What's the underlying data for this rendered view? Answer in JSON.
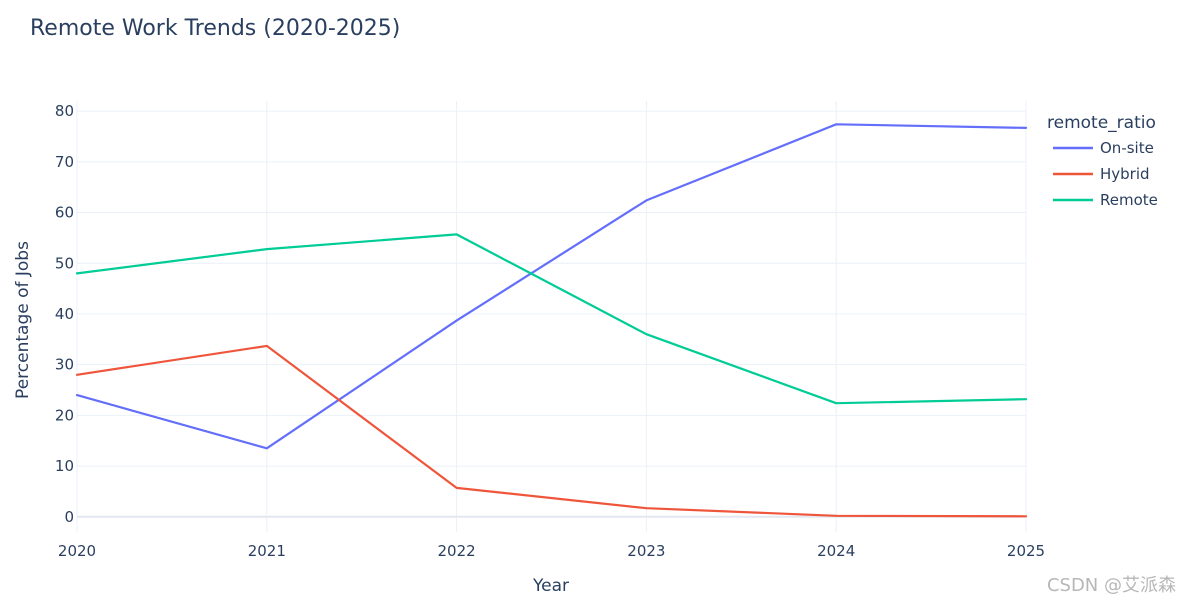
{
  "chart_data": {
    "type": "line",
    "title": "Remote Work Trends (2020-2025)",
    "xlabel": "Year",
    "ylabel": "Percentage of Jobs",
    "x": [
      2020,
      2021,
      2022,
      2023,
      2024,
      2025
    ],
    "xlim": [
      2020,
      2025
    ],
    "ylim": [
      -3,
      82
    ],
    "yticks": [
      0,
      10,
      20,
      30,
      40,
      50,
      60,
      70,
      80
    ],
    "xticks": [
      2020,
      2021,
      2022,
      2023,
      2024,
      2025
    ],
    "grid": true,
    "legend": {
      "title": "remote_ratio",
      "placement": "right"
    },
    "series": [
      {
        "name": "On-site",
        "color": "#636efa",
        "values": [
          24,
          13.5,
          38.7,
          62.4,
          77.4,
          76.7
        ]
      },
      {
        "name": "Hybrid",
        "color": "#ef553b",
        "values": [
          28,
          33.7,
          5.7,
          1.7,
          0.2,
          0.1
        ]
      },
      {
        "name": "Remote",
        "color": "#00cc96",
        "values": [
          48,
          52.8,
          55.7,
          36,
          22.4,
          23.2
        ]
      }
    ]
  },
  "watermark": "CSDN @艾派森"
}
